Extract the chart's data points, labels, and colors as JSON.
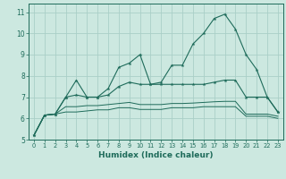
{
  "title": "",
  "xlabel": "Humidex (Indice chaleur)",
  "xlim": [
    -0.5,
    23.5
  ],
  "ylim": [
    5.0,
    11.4
  ],
  "yticks": [
    5,
    6,
    7,
    8,
    9,
    10,
    11
  ],
  "xticks": [
    0,
    1,
    2,
    3,
    4,
    5,
    6,
    7,
    8,
    9,
    10,
    11,
    12,
    13,
    14,
    15,
    16,
    17,
    18,
    19,
    20,
    21,
    22,
    23
  ],
  "bg_color": "#cce8e0",
  "line_color": "#1e6b5a",
  "grid_color": "#aacfc8",
  "line1": [
    5.2,
    6.15,
    6.2,
    7.0,
    7.8,
    7.0,
    7.0,
    7.4,
    8.4,
    8.6,
    9.0,
    7.6,
    7.7,
    8.5,
    8.5,
    9.5,
    10.0,
    10.7,
    10.9,
    10.2,
    9.0,
    8.3,
    7.0,
    6.3
  ],
  "line2": [
    5.2,
    6.15,
    6.2,
    7.0,
    7.1,
    7.0,
    7.0,
    7.1,
    7.5,
    7.7,
    7.6,
    7.6,
    7.6,
    7.6,
    7.6,
    7.6,
    7.6,
    7.7,
    7.8,
    7.8,
    7.0,
    7.0,
    7.0,
    6.3
  ],
  "line3": [
    5.2,
    6.15,
    6.2,
    6.55,
    6.55,
    6.6,
    6.6,
    6.65,
    6.7,
    6.75,
    6.65,
    6.65,
    6.65,
    6.7,
    6.7,
    6.72,
    6.75,
    6.78,
    6.8,
    6.8,
    6.2,
    6.2,
    6.2,
    6.1
  ],
  "line4": [
    5.2,
    6.15,
    6.2,
    6.3,
    6.3,
    6.35,
    6.4,
    6.4,
    6.5,
    6.5,
    6.42,
    6.42,
    6.42,
    6.5,
    6.5,
    6.5,
    6.55,
    6.55,
    6.55,
    6.55,
    6.1,
    6.1,
    6.1,
    6.0
  ]
}
